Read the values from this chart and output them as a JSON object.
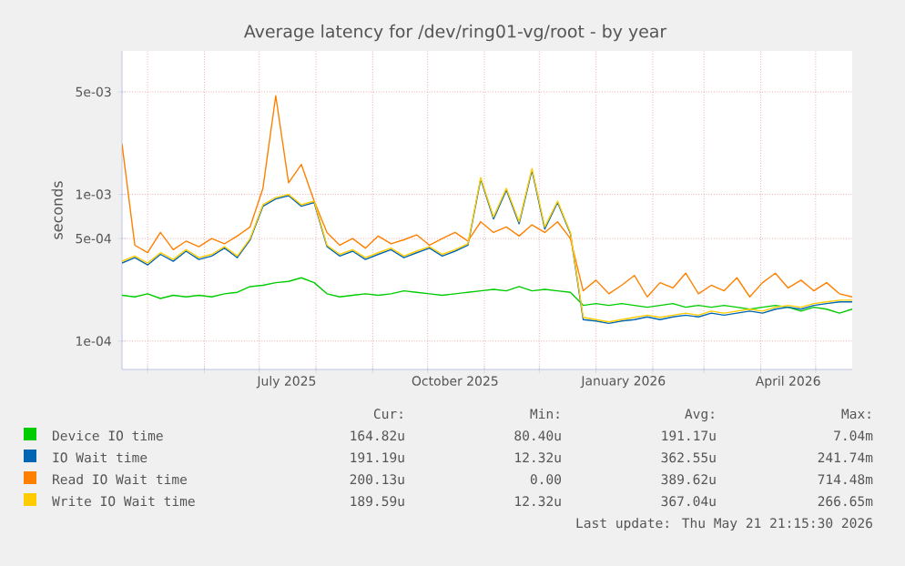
{
  "chart_data": {
    "type": "line",
    "title": "Average latency for /dev/ring01-vg/root - by year",
    "ylabel": "seconds",
    "log": "y",
    "grid": true,
    "legend": "bottom",
    "xlim": [
      "2025-04-17",
      "2026-05-21"
    ],
    "ylim": [
      6.4e-05,
      0.0095
    ],
    "yticks": [
      {
        "value": 0.0001,
        "label": "1e-04"
      },
      {
        "value": 0.0005,
        "label": "5e-04"
      },
      {
        "value": 0.001,
        "label": "1e-03"
      },
      {
        "value": 0.005,
        "label": "5e-03"
      }
    ],
    "xticks": [
      {
        "value": "2025-05-01",
        "label": null
      },
      {
        "value": "2025-06-01",
        "label": null
      },
      {
        "value": "2025-07-01",
        "label": null
      },
      {
        "value": "2025-08-01",
        "label": null
      },
      {
        "value": "2025-09-01",
        "label": null
      },
      {
        "value": "2025-10-01",
        "label": null
      },
      {
        "value": "2025-11-01",
        "label": null
      },
      {
        "value": "2025-12-01",
        "label": null
      },
      {
        "value": "2026-01-01",
        "label": null
      },
      {
        "value": "2026-02-01",
        "label": null
      },
      {
        "value": "2026-03-01",
        "label": null
      },
      {
        "value": "2026-04-01",
        "label": null
      },
      {
        "value": "2026-05-01",
        "label": null
      },
      {
        "value": "2025-07-16",
        "label": "July 2025"
      },
      {
        "value": "2025-10-16",
        "label": "October 2025"
      },
      {
        "value": "2026-01-16",
        "label": "January 2026"
      },
      {
        "value": "2026-04-16",
        "label": "April 2026"
      }
    ],
    "x": [
      "2025-04-17",
      "2025-04-24",
      "2025-05-01",
      "2025-05-08",
      "2025-05-15",
      "2025-05-22",
      "2025-05-29",
      "2025-06-05",
      "2025-06-12",
      "2025-06-19",
      "2025-06-26",
      "2025-07-03",
      "2025-07-10",
      "2025-07-17",
      "2025-07-24",
      "2025-07-31",
      "2025-08-07",
      "2025-08-14",
      "2025-08-21",
      "2025-08-28",
      "2025-09-04",
      "2025-09-11",
      "2025-09-18",
      "2025-09-25",
      "2025-10-02",
      "2025-10-09",
      "2025-10-16",
      "2025-10-23",
      "2025-10-30",
      "2025-11-06",
      "2025-11-13",
      "2025-11-20",
      "2025-11-27",
      "2025-12-04",
      "2025-12-11",
      "2025-12-18",
      "2025-12-25",
      "2026-01-01",
      "2026-01-08",
      "2026-01-15",
      "2026-01-22",
      "2026-01-29",
      "2026-02-05",
      "2026-02-12",
      "2026-02-19",
      "2026-02-26",
      "2026-03-05",
      "2026-03-12",
      "2026-03-19",
      "2026-03-26",
      "2026-04-02",
      "2026-04-09",
      "2026-04-16",
      "2026-04-23",
      "2026-04-30",
      "2026-05-07",
      "2026-05-14",
      "2026-05-21"
    ],
    "series": [
      {
        "name": "Device IO time",
        "color": "#00cc00",
        "values": [
          0.000205,
          0.0002,
          0.00021,
          0.000195,
          0.000205,
          0.0002,
          0.000205,
          0.0002,
          0.00021,
          0.000215,
          0.000235,
          0.00024,
          0.00025,
          0.000255,
          0.00027,
          0.00025,
          0.00021,
          0.0002,
          0.000205,
          0.00021,
          0.000205,
          0.00021,
          0.00022,
          0.000215,
          0.00021,
          0.000205,
          0.00021,
          0.000215,
          0.00022,
          0.000225,
          0.00022,
          0.000235,
          0.00022,
          0.000225,
          0.00022,
          0.000215,
          0.000175,
          0.00018,
          0.000175,
          0.00018,
          0.000175,
          0.00017,
          0.000175,
          0.00018,
          0.00017,
          0.000175,
          0.00017,
          0.000175,
          0.00017,
          0.000165,
          0.00017,
          0.000175,
          0.00017,
          0.00016,
          0.00017,
          0.000165,
          0.000155,
          0.000165
        ]
      },
      {
        "name": "IO Wait time",
        "color": "#0066b3",
        "values": [
          0.00034,
          0.00037,
          0.00033,
          0.00039,
          0.00035,
          0.00041,
          0.00036,
          0.00038,
          0.00043,
          0.00037,
          0.00049,
          0.00083,
          0.00093,
          0.00098,
          0.00083,
          0.00088,
          0.00044,
          0.00038,
          0.00041,
          0.00036,
          0.00039,
          0.00042,
          0.00037,
          0.0004,
          0.00043,
          0.00038,
          0.00041,
          0.00045,
          0.00127,
          0.00068,
          0.00107,
          0.00063,
          0.00146,
          0.00058,
          0.00088,
          0.00054,
          0.00014,
          0.000137,
          0.000132,
          0.000137,
          0.00014,
          0.000146,
          0.00014,
          0.000146,
          0.00015,
          0.000146,
          0.000155,
          0.00015,
          0.000155,
          0.00016,
          0.000155,
          0.000165,
          0.00017,
          0.000165,
          0.000175,
          0.00018,
          0.000185,
          0.000185
        ]
      },
      {
        "name": "Read IO Wait time",
        "color": "#ff8000",
        "values": [
          0.0022,
          0.00045,
          0.0004,
          0.00055,
          0.00042,
          0.00048,
          0.00044,
          0.0005,
          0.00046,
          0.00052,
          0.0006,
          0.0011,
          0.0047,
          0.0012,
          0.0016,
          0.0009,
          0.00055,
          0.00045,
          0.0005,
          0.00043,
          0.00052,
          0.00046,
          0.00049,
          0.00053,
          0.00045,
          0.0005,
          0.00055,
          0.00048,
          0.00065,
          0.00055,
          0.0006,
          0.00052,
          0.00062,
          0.00055,
          0.00065,
          0.0005,
          0.00022,
          0.00026,
          0.00021,
          0.00024,
          0.00028,
          0.0002,
          0.00025,
          0.00023,
          0.00029,
          0.00021,
          0.00024,
          0.00022,
          0.00027,
          0.0002,
          0.00025,
          0.00029,
          0.00023,
          0.00026,
          0.00022,
          0.00025,
          0.00021,
          0.0002
        ]
      },
      {
        "name": "Write IO Wait time",
        "color": "#ffcc00",
        "values": [
          0.00035,
          0.00038,
          0.00034,
          0.0004,
          0.00036,
          0.00042,
          0.00037,
          0.00039,
          0.00044,
          0.00038,
          0.0005,
          0.00085,
          0.00095,
          0.001,
          0.00085,
          0.0009,
          0.00045,
          0.00039,
          0.00042,
          0.00037,
          0.0004,
          0.00043,
          0.00038,
          0.00041,
          0.00044,
          0.00039,
          0.00042,
          0.00046,
          0.0013,
          0.0007,
          0.0011,
          0.00065,
          0.0015,
          0.0006,
          0.0009,
          0.00055,
          0.000145,
          0.00014,
          0.000135,
          0.00014,
          0.000145,
          0.00015,
          0.000145,
          0.00015,
          0.000155,
          0.00015,
          0.00016,
          0.000155,
          0.00016,
          0.000165,
          0.00016,
          0.00017,
          0.000175,
          0.00017,
          0.00018,
          0.000185,
          0.00019,
          0.00019
        ]
      }
    ],
    "annotations": [
      "Cur:",
      "Min:",
      "Avg:",
      "Max:",
      "164.82u",
      "80.40u",
      "191.17u",
      "7.04m",
      "191.19u",
      "12.32u",
      "362.55u",
      "241.74m",
      "200.13u",
      "0.00",
      "389.62u",
      "714.48m",
      "189.59u",
      "12.32u",
      "367.04u",
      "266.65m",
      "Last update: Thu May 21 21:15:30 2026"
    ]
  }
}
